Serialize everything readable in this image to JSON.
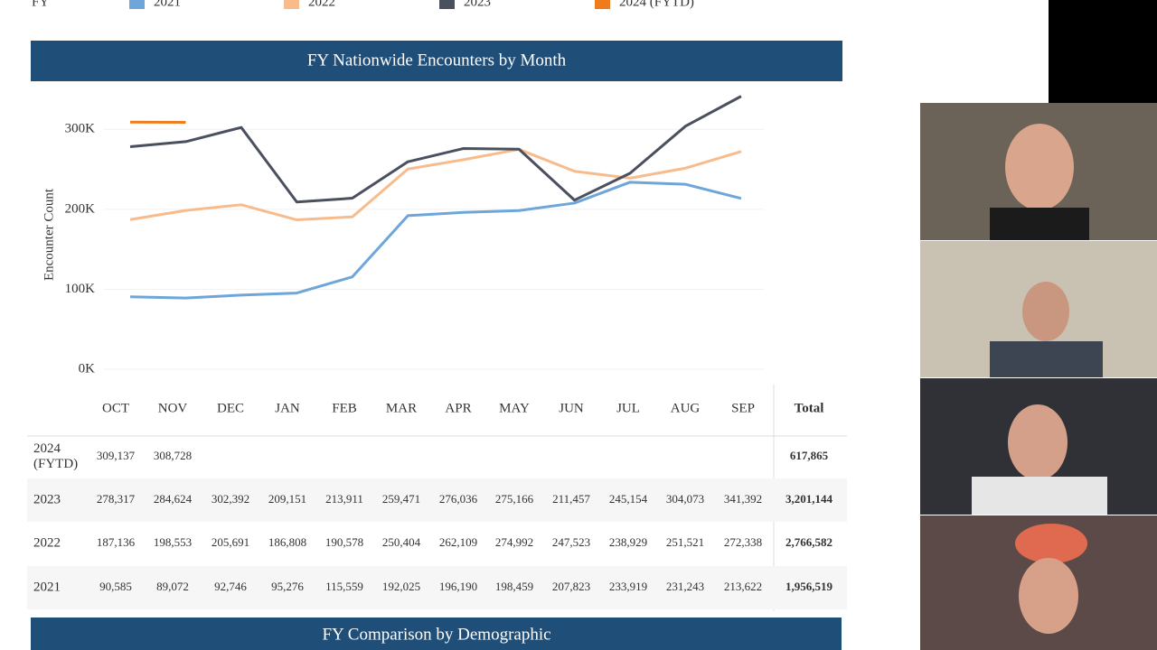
{
  "legend_header": "FY",
  "chart_data": {
    "type": "line",
    "title": "FY Nationwide Encounters by Month",
    "y_label": "Encounter Count",
    "categories": [
      "OCT",
      "NOV",
      "DEC",
      "JAN",
      "FEB",
      "MAR",
      "APR",
      "MAY",
      "JUN",
      "JUL",
      "AUG",
      "SEP"
    ],
    "series": [
      {
        "name": "2021",
        "color": "#6ea6da",
        "values": [
          90585,
          89072,
          92746,
          95276,
          115559,
          192025,
          196190,
          198459,
          207823,
          233919,
          231243,
          213622
        ]
      },
      {
        "name": "2022",
        "color": "#f7bb8c",
        "values": [
          187136,
          198553,
          205691,
          186808,
          190578,
          250404,
          262109,
          274992,
          247523,
          238929,
          251521,
          272338
        ]
      },
      {
        "name": "2023",
        "color": "#4b505e",
        "values": [
          278317,
          284624,
          302392,
          209151,
          213911,
          259471,
          276036,
          275166,
          211457,
          245154,
          304073,
          341392
        ]
      },
      {
        "name": "2024 (FYTD)",
        "color": "#f07b1d",
        "values": [
          309137,
          308728,
          null,
          null,
          null,
          null,
          null,
          null,
          null,
          null,
          null,
          null
        ]
      }
    ],
    "ylim": [
      0,
      350000
    ],
    "yticks": [
      {
        "value": 0,
        "label": "0K"
      },
      {
        "value": 100000,
        "label": "100K"
      },
      {
        "value": 200000,
        "label": "200K"
      },
      {
        "value": 300000,
        "label": "300K"
      }
    ],
    "grid": true
  },
  "table": {
    "columns": [
      "OCT",
      "NOV",
      "DEC",
      "JAN",
      "FEB",
      "MAR",
      "APR",
      "MAY",
      "JUN",
      "JUL",
      "AUG",
      "SEP",
      "Total"
    ],
    "rows": [
      [
        "2024 (FYTD)",
        "309,137",
        "308,728",
        "",
        "",
        "",
        "",
        "",
        "",
        "",
        "",
        "",
        "",
        "617,865"
      ],
      [
        "2023",
        "278,317",
        "284,624",
        "302,392",
        "209,151",
        "213,911",
        "259,471",
        "276,036",
        "275,166",
        "211,457",
        "245,154",
        "304,073",
        "341,392",
        "3,201,144"
      ],
      [
        "2022",
        "187,136",
        "198,553",
        "205,691",
        "186,808",
        "190,578",
        "250,404",
        "262,109",
        "274,992",
        "247,523",
        "238,929",
        "251,521",
        "272,338",
        "2,766,582"
      ],
      [
        "2021",
        "90,585",
        "89,072",
        "92,746",
        "95,276",
        "115,559",
        "192,025",
        "196,190",
        "198,459",
        "207,823",
        "233,919",
        "231,243",
        "213,622",
        "1,956,519"
      ]
    ]
  },
  "section2_title": "FY Comparison by Demographic"
}
